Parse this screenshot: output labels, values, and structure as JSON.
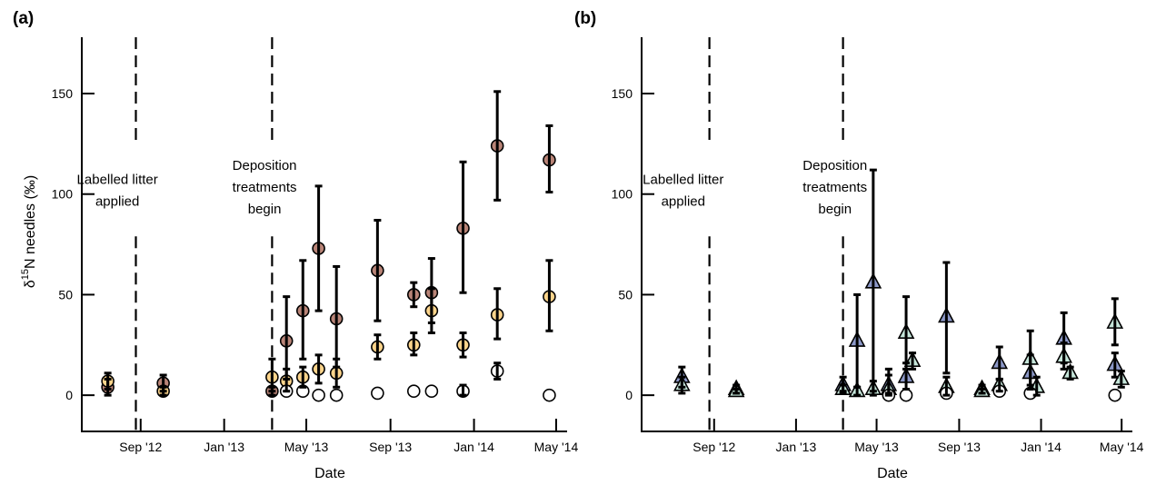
{
  "figure": {
    "background": "#ffffff",
    "colors": {
      "axis": "#000000",
      "brown": "#b98477",
      "orange": "#fcd48b",
      "white": "#ffffff",
      "blue": "#8d99c9",
      "mint": "#c6e6da"
    }
  },
  "chart_data": [
    {
      "type": "scatter",
      "panel_label": "(a)",
      "xlabel": "Date",
      "ylabel_base": "δ",
      "ylabel_sup": "15",
      "ylabel_rest": "N needles (‰)",
      "ylim": [
        -18,
        178
      ],
      "xlim": [
        "2012-06-07",
        "2014-05-17"
      ],
      "yticks": [
        0,
        50,
        100,
        150
      ],
      "yticklabels": [
        "0",
        "50",
        "100",
        "150"
      ],
      "xticks": [
        "2012-09-01",
        "2013-01-01",
        "2013-05-01",
        "2013-09-01",
        "2014-01-01",
        "2014-05-01"
      ],
      "xticklabels": [
        "Sep '12",
        "Jan '13",
        "May '13",
        "Sep '13",
        "Jan '14",
        "May '14"
      ],
      "grid": false,
      "vlines": [
        "2012-08-25",
        "2013-03-12"
      ],
      "annotations": [
        {
          "lines": [
            "Labelled litter",
            "applied"
          ],
          "x": "2012-07-29",
          "y": 105
        },
        {
          "lines": [
            "Deposition",
            "treatments",
            "begin"
          ],
          "x": "2013-03-01",
          "y": 112
        }
      ],
      "series": [
        {
          "marker": "circle",
          "color": "#b98477",
          "points": [
            {
              "x": "2012-07-15",
              "y": 4,
              "lo": 0,
              "hi": 8
            },
            {
              "x": "2012-10-04",
              "y": 6,
              "lo": 2,
              "hi": 10
            },
            {
              "x": "2013-03-12",
              "y": 2,
              "lo": 0,
              "hi": 4
            },
            {
              "x": "2013-04-02",
              "y": 27,
              "lo": 8,
              "hi": 49
            },
            {
              "x": "2013-04-26",
              "y": 42,
              "lo": 18,
              "hi": 67
            },
            {
              "x": "2013-05-19",
              "y": 73,
              "lo": 42,
              "hi": 104
            },
            {
              "x": "2013-06-14",
              "y": 38,
              "lo": 14,
              "hi": 64
            },
            {
              "x": "2013-08-13",
              "y": 62,
              "lo": 37,
              "hi": 87
            },
            {
              "x": "2013-10-05",
              "y": 50,
              "lo": 44,
              "hi": 56
            },
            {
              "x": "2013-10-31",
              "y": 51,
              "lo": 36,
              "hi": 68
            },
            {
              "x": "2013-12-16",
              "y": 83,
              "lo": 51,
              "hi": 116
            },
            {
              "x": "2014-02-04",
              "y": 124,
              "lo": 97,
              "hi": 151
            },
            {
              "x": "2014-04-21",
              "y": 117,
              "lo": 101,
              "hi": 134
            }
          ]
        },
        {
          "marker": "circle",
          "color": "#fcd48b",
          "points": [
            {
              "x": "2012-07-15",
              "y": 7,
              "lo": 3,
              "hi": 11
            },
            {
              "x": "2012-10-04",
              "y": 2,
              "lo": 0,
              "hi": 4
            },
            {
              "x": "2013-03-12",
              "y": 9,
              "lo": 2,
              "hi": 18
            },
            {
              "x": "2013-04-02",
              "y": 7,
              "lo": 2,
              "hi": 13
            },
            {
              "x": "2013-04-26",
              "y": 9,
              "lo": 4,
              "hi": 14
            },
            {
              "x": "2013-05-19",
              "y": 13,
              "lo": 6,
              "hi": 20
            },
            {
              "x": "2013-06-14",
              "y": 11,
              "lo": 4,
              "hi": 18
            },
            {
              "x": "2013-08-13",
              "y": 24,
              "lo": 18,
              "hi": 30
            },
            {
              "x": "2013-10-05",
              "y": 25,
              "lo": 20,
              "hi": 31
            },
            {
              "x": "2013-10-31",
              "y": 42,
              "lo": 31,
              "hi": 53
            },
            {
              "x": "2013-12-16",
              "y": 25,
              "lo": 19,
              "hi": 31
            },
            {
              "x": "2014-02-04",
              "y": 40,
              "lo": 28,
              "hi": 53
            },
            {
              "x": "2014-04-21",
              "y": 49,
              "lo": 32,
              "hi": 67
            }
          ]
        },
        {
          "marker": "circle",
          "color": "#ffffff",
          "points": [
            {
              "x": "2013-04-02",
              "y": 2
            },
            {
              "x": "2013-04-26",
              "y": 2
            },
            {
              "x": "2013-05-19",
              "y": 0
            },
            {
              "x": "2013-06-14",
              "y": 0
            },
            {
              "x": "2013-08-13",
              "y": 1
            },
            {
              "x": "2013-10-05",
              "y": 2
            },
            {
              "x": "2013-10-31",
              "y": 2
            },
            {
              "x": "2013-12-16",
              "y": 2,
              "lo": 0,
              "hi": 5
            },
            {
              "x": "2014-02-04",
              "y": 12,
              "lo": 8,
              "hi": 16
            },
            {
              "x": "2014-04-21",
              "y": 0
            }
          ]
        }
      ]
    },
    {
      "type": "scatter",
      "panel_label": "(b)",
      "xlabel": "Date",
      "ylim": [
        -18,
        178
      ],
      "xlim": [
        "2012-05-16",
        "2014-05-17"
      ],
      "yticks": [
        0,
        50,
        100,
        150
      ],
      "yticklabels": [
        "0",
        "50",
        "100",
        "150"
      ],
      "xticks": [
        "2012-09-01",
        "2013-01-01",
        "2013-05-01",
        "2013-09-01",
        "2014-01-01",
        "2014-05-01"
      ],
      "xticklabels": [
        "Sep '12",
        "Jan '13",
        "May '13",
        "Sep '13",
        "Jan '14",
        "May '14"
      ],
      "grid": false,
      "vlines": [
        "2012-08-25",
        "2013-03-12"
      ],
      "annotations": [
        {
          "lines": [
            "Labelled litter",
            "applied"
          ],
          "x": "2012-07-17",
          "y": 105
        },
        {
          "lines": [
            "Deposition",
            "treatments",
            "begin"
          ],
          "x": "2013-02-28",
          "y": 112
        }
      ],
      "series": [
        {
          "marker": "triangle",
          "color": "#8d99c9",
          "points": [
            {
              "x": "2012-07-15",
              "y": 9,
              "lo": 4,
              "hi": 14
            },
            {
              "x": "2012-10-04",
              "y": 3,
              "lo": 1,
              "hi": 5
            },
            {
              "x": "2013-03-12",
              "y": 5,
              "lo": 2,
              "hi": 9
            },
            {
              "x": "2013-04-02",
              "y": 27,
              "lo": 4,
              "hi": 50
            },
            {
              "x": "2013-04-26",
              "y": 56,
              "lo": 2,
              "hi": 112
            },
            {
              "x": "2013-05-19",
              "y": 5,
              "lo": 1,
              "hi": 10
            },
            {
              "x": "2013-06-14",
              "y": 9,
              "lo": 3,
              "hi": 16
            },
            {
              "x": "2013-08-13",
              "y": 39,
              "lo": 11,
              "hi": 66
            },
            {
              "x": "2013-10-05",
              "y": 3,
              "lo": 1,
              "hi": 5
            },
            {
              "x": "2013-10-31",
              "y": 16,
              "lo": 8,
              "hi": 24
            },
            {
              "x": "2013-12-16",
              "y": 11,
              "lo": 3,
              "hi": 20
            },
            {
              "x": "2014-02-04",
              "y": 28,
              "lo": 16,
              "hi": 41
            },
            {
              "x": "2014-04-21",
              "y": 15,
              "lo": 9,
              "hi": 21
            }
          ]
        },
        {
          "marker": "triangle",
          "color": "#c6e6da",
          "points": [
            {
              "x": "2012-07-15",
              "y": 5,
              "lo": 1,
              "hi": 9
            },
            {
              "x": "2012-10-04",
              "y": 2,
              "lo": 1,
              "hi": 3
            },
            {
              "x": "2013-03-12",
              "y": 3,
              "lo": 1,
              "hi": 5
            },
            {
              "x": "2013-04-02",
              "y": 2,
              "lo": 0,
              "hi": 4
            },
            {
              "x": "2013-04-26",
              "y": 3,
              "lo": 0,
              "hi": 7
            },
            {
              "x": "2013-05-19",
              "y": 3,
              "lo": 0,
              "hi": 13
            },
            {
              "x": "2013-06-14",
              "y": 31,
              "lo": 13,
              "hi": 49
            },
            {
              "x": "2013-06-14b",
              "y": 17,
              "lo": 13,
              "hi": 21
            },
            {
              "x": "2013-08-13",
              "y": 4,
              "lo": 0,
              "hi": 9
            },
            {
              "x": "2013-10-05",
              "y": 2,
              "lo": 1,
              "hi": 3
            },
            {
              "x": "2013-10-31",
              "y": 5,
              "lo": 2,
              "hi": 8
            },
            {
              "x": "2013-12-16",
              "y": 18,
              "lo": 5,
              "hi": 32
            },
            {
              "x": "2013-12-16b",
              "y": 4,
              "lo": 0,
              "hi": 9
            },
            {
              "x": "2014-02-04",
              "y": 19,
              "lo": 13,
              "hi": 26
            },
            {
              "x": "2014-02-04b",
              "y": 11,
              "lo": 8,
              "hi": 14
            },
            {
              "x": "2014-04-21",
              "y": 36,
              "lo": 25,
              "hi": 48
            },
            {
              "x": "2014-04-21b",
              "y": 8,
              "lo": 4,
              "hi": 12
            }
          ]
        },
        {
          "marker": "circle",
          "color": "#ffffff",
          "points": [
            {
              "x": "2013-05-19",
              "y": 0
            },
            {
              "x": "2013-06-14",
              "y": 0
            },
            {
              "x": "2013-08-13",
              "y": 1
            },
            {
              "x": "2013-10-31",
              "y": 2
            },
            {
              "x": "2013-12-16",
              "y": 1
            },
            {
              "x": "2014-04-21",
              "y": 0
            }
          ]
        }
      ]
    }
  ]
}
